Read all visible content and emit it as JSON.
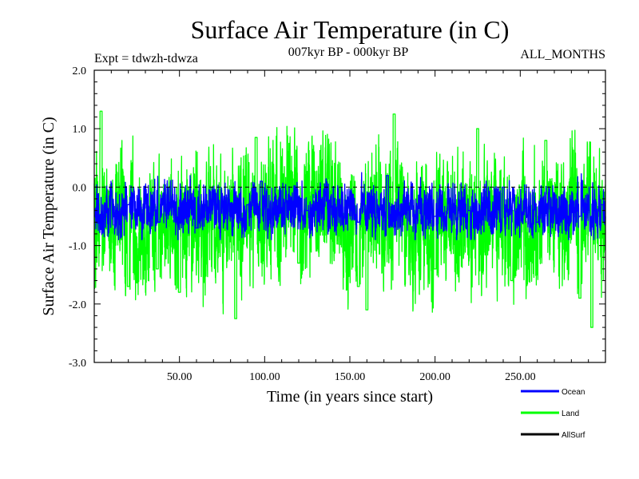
{
  "chart_data": {
    "type": "line",
    "title": "Surface Air Temperature (in C)",
    "subtitle": "007kyr BP - 000kyr BP",
    "experiment": "Expt = tdwzh-tdwza",
    "period": "ALL_MONTHS",
    "xlabel": "Time (in years since start)",
    "ylabel": "Surface Air Temperature (in C)",
    "xlim": [
      0,
      300
    ],
    "ylim": [
      -3.0,
      2.0
    ],
    "x_ticks": [
      50,
      100,
      150,
      200,
      250
    ],
    "x_tick_labels": [
      "50.00",
      "100.00",
      "150.00",
      "200.00",
      "250.00"
    ],
    "y_ticks": [
      -3.0,
      -2.0,
      -1.0,
      0.0,
      1.0,
      2.0
    ],
    "y_tick_labels": [
      "-3.0",
      "-2.0",
      "-1.0",
      "0.0",
      "1.0",
      "2.0"
    ],
    "reference_line": {
      "y": 0.0,
      "style": "dashed"
    },
    "legend_placement": "bottom-right",
    "series": [
      {
        "name": "Ocean",
        "color": "#0000ff",
        "mean": -0.4,
        "min": -0.9,
        "max": 0.25,
        "key_points": [
          [
            0,
            -0.5
          ],
          [
            20,
            -0.3
          ],
          [
            38,
            -0.6
          ],
          [
            60,
            -0.7
          ],
          [
            90,
            -0.3
          ],
          [
            98,
            0.1
          ],
          [
            125,
            -0.4
          ],
          [
            155,
            -0.6
          ],
          [
            172,
            0.2
          ],
          [
            200,
            -0.5
          ],
          [
            220,
            -0.4
          ],
          [
            240,
            0.0
          ],
          [
            260,
            -0.6
          ],
          [
            285,
            -0.5
          ],
          [
            298,
            -0.3
          ]
        ]
      },
      {
        "name": "Land",
        "color": "#00ff00",
        "mean": -0.6,
        "min": -2.4,
        "max": 1.3,
        "key_points": [
          [
            4,
            1.3
          ],
          [
            20,
            -1.7
          ],
          [
            37,
            -1.4
          ],
          [
            50,
            -1.8
          ],
          [
            83,
            -2.25
          ],
          [
            95,
            0.85
          ],
          [
            120,
            -1.3
          ],
          [
            155,
            -1.7
          ],
          [
            160,
            -2.1
          ],
          [
            176,
            1.25
          ],
          [
            200,
            -1.4
          ],
          [
            225,
            1.0
          ],
          [
            245,
            -1.6
          ],
          [
            265,
            0.8
          ],
          [
            285,
            -1.9
          ],
          [
            292,
            -2.4
          ]
        ]
      },
      {
        "name": "AllSurf",
        "color": "#000000",
        "mean": null,
        "min": null,
        "max": null,
        "key_points": []
      }
    ]
  }
}
